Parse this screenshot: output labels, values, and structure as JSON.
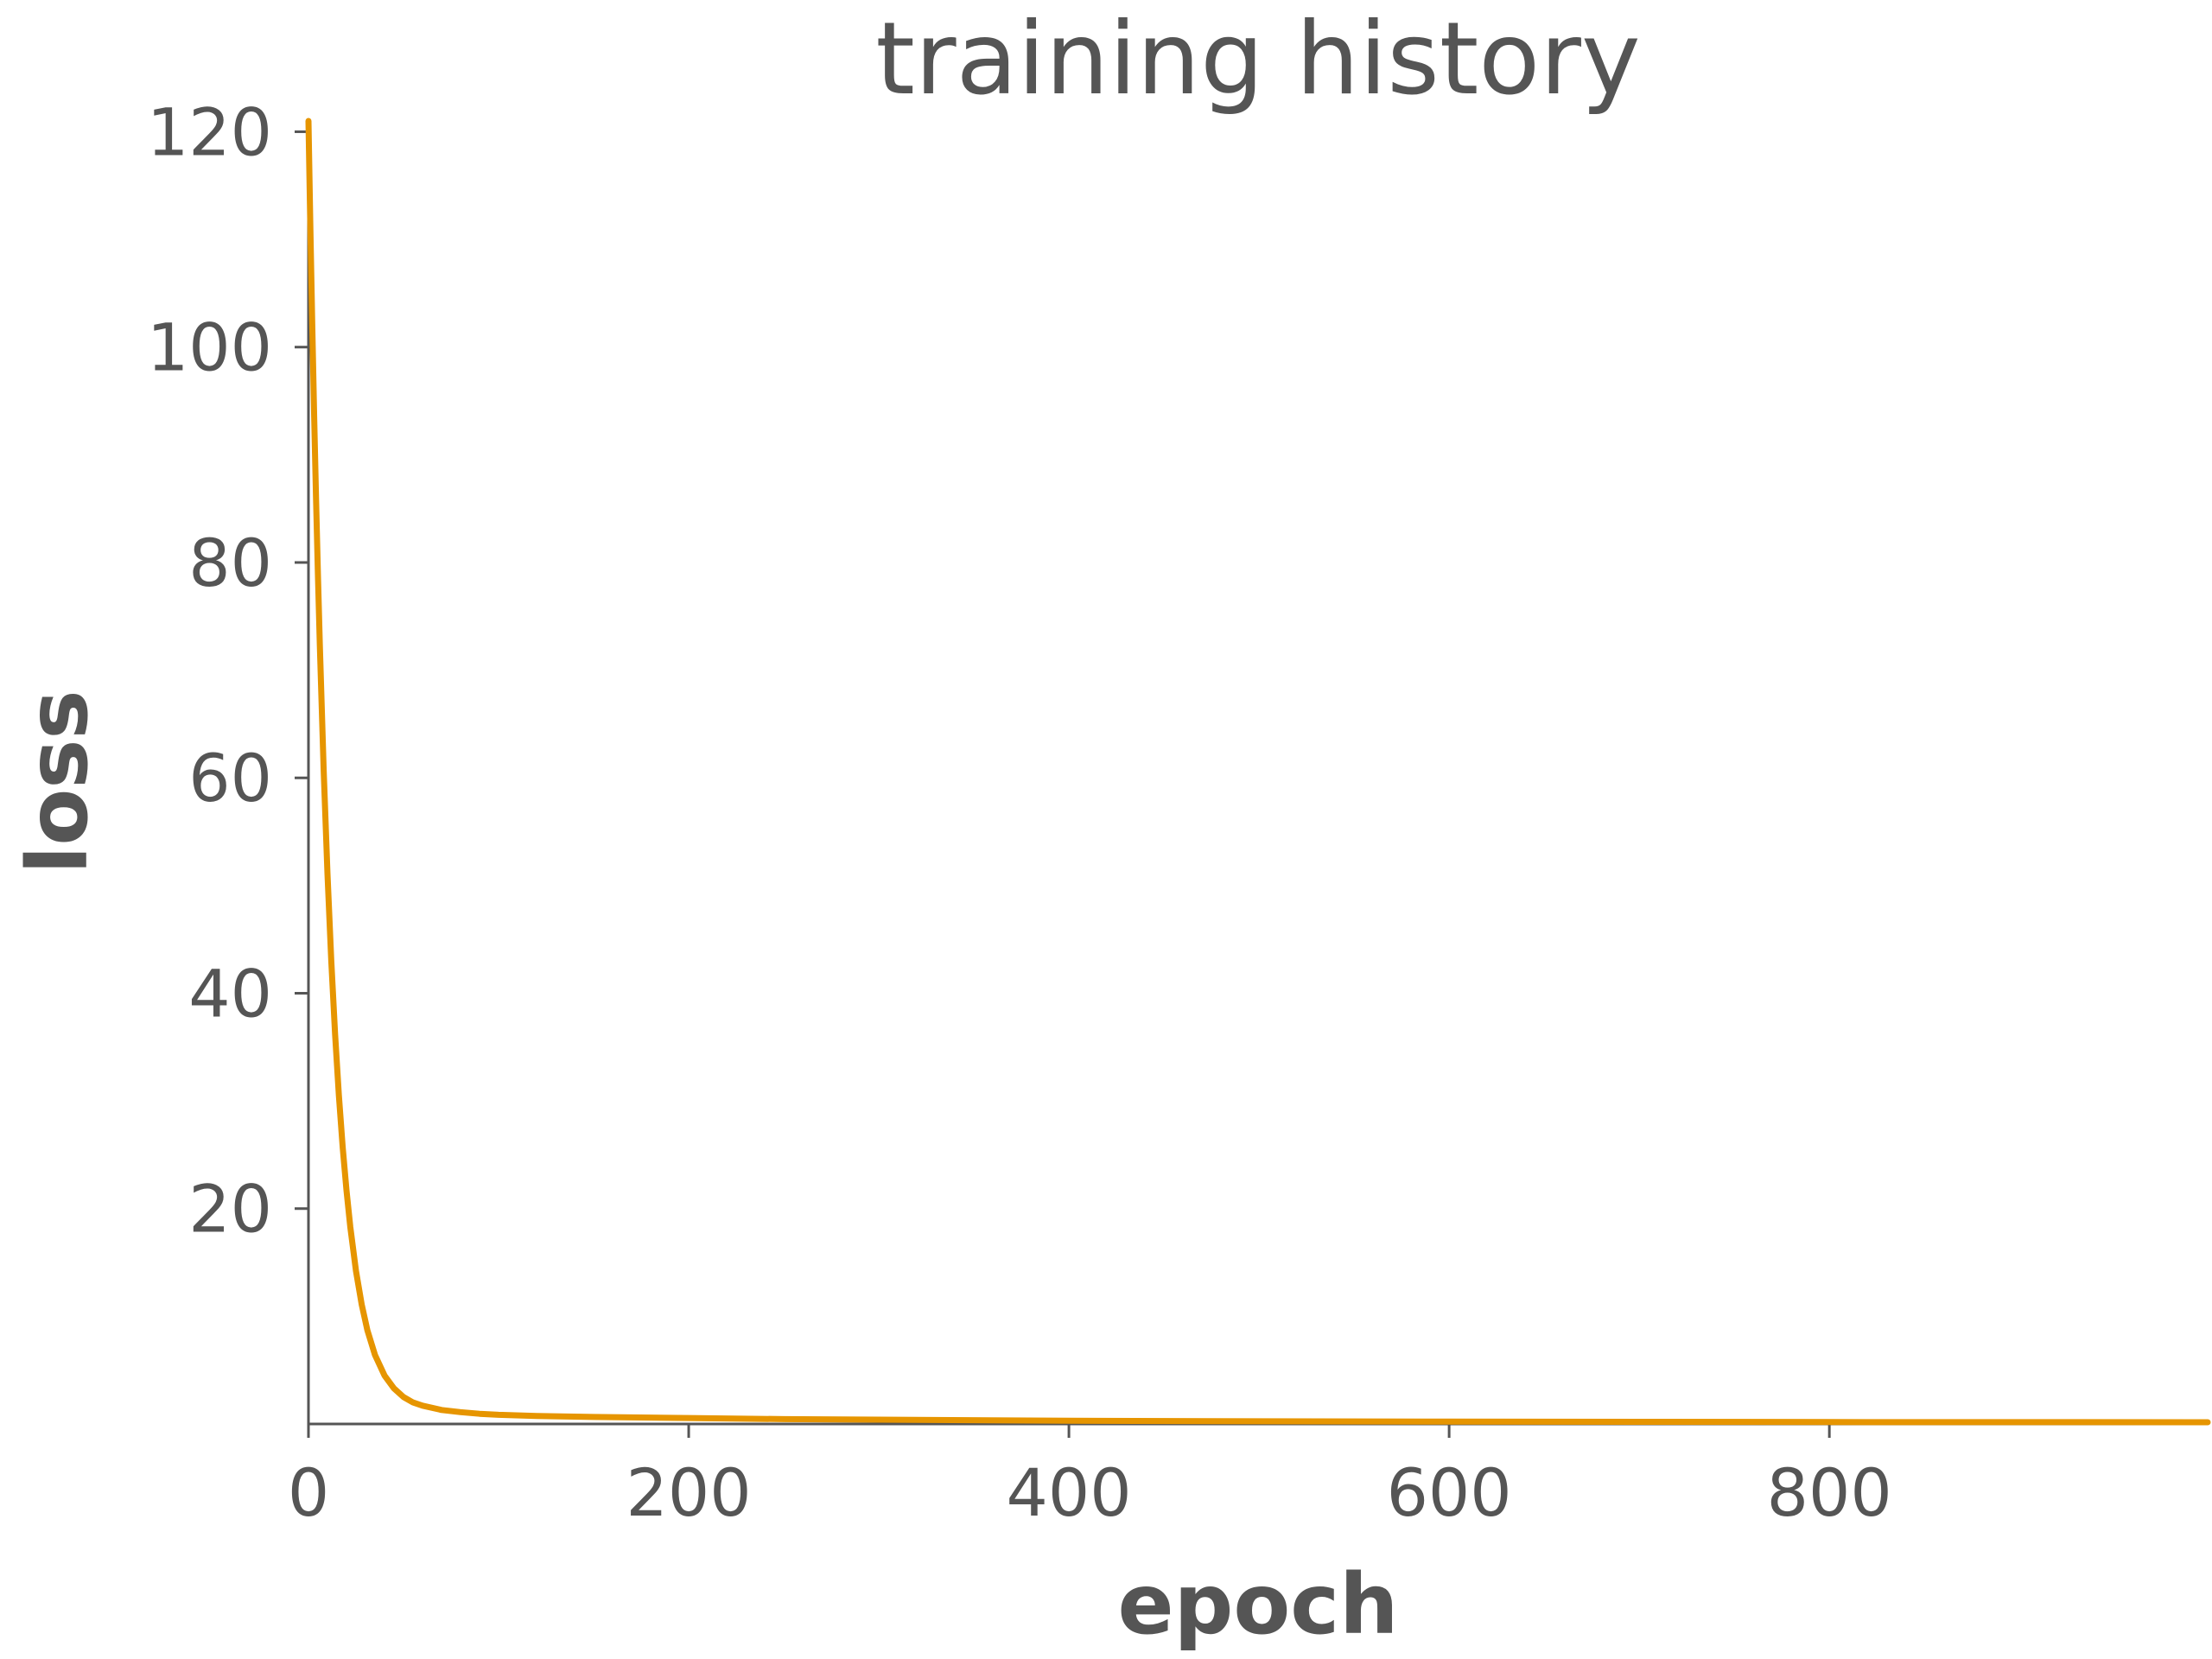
{
  "chart_data": {
    "type": "line",
    "title": "training history",
    "xlabel": "epoch",
    "ylabel": "loss",
    "xlim": [
      0,
      999
    ],
    "ylim": [
      0,
      121
    ],
    "xticks": [
      0,
      200,
      400,
      600,
      800
    ],
    "yticks": [
      20,
      40,
      60,
      80,
      100,
      120
    ],
    "grid": false,
    "series": [
      {
        "color": "#e69500",
        "x": [
          0,
          1,
          2,
          3,
          4,
          5,
          6,
          8,
          10,
          12,
          14,
          16,
          18,
          20,
          22,
          25,
          28,
          31,
          35,
          40,
          45,
          50,
          55,
          60,
          70,
          80,
          90,
          100,
          120,
          150,
          200,
          250,
          300,
          400,
          500,
          600,
          700,
          800,
          900,
          999
        ],
        "y": [
          121,
          111,
          102,
          93.5,
          85.8,
          78.7,
          72.2,
          60.7,
          51.1,
          43.0,
          36.2,
          30.5,
          25.7,
          21.7,
          18.3,
          14.2,
          11.1,
          8.7,
          6.4,
          4.5,
          3.3,
          2.5,
          2.0,
          1.7,
          1.3,
          1.1,
          0.95,
          0.85,
          0.75,
          0.65,
          0.55,
          0.45,
          0.4,
          0.3,
          0.25,
          0.22,
          0.2,
          0.18,
          0.17,
          0.16
        ]
      }
    ]
  }
}
